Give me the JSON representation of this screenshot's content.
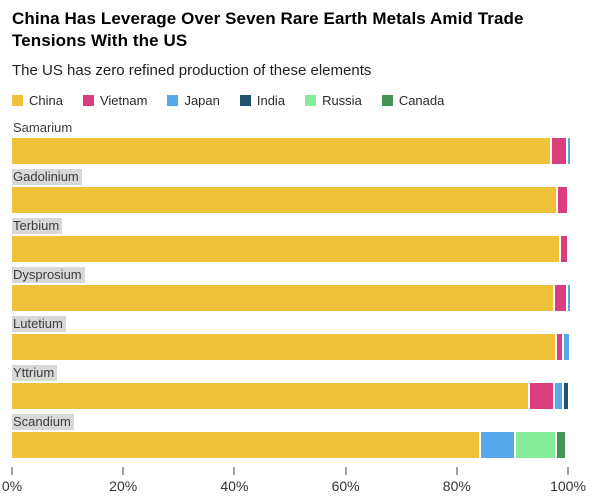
{
  "header": {
    "title": "China Has Leverage Over Seven Rare Earth Metals Amid Trade Tensions With the US",
    "subtitle": "The US has zero refined production of these elements"
  },
  "legend": [
    {
      "label": "China",
      "color": "#F0C239"
    },
    {
      "label": "Vietnam",
      "color": "#DB3E7E"
    },
    {
      "label": "Japan",
      "color": "#55A8EA"
    },
    {
      "label": "India",
      "color": "#20506E"
    },
    {
      "label": "Russia",
      "color": "#86EC9C"
    },
    {
      "label": "Canada",
      "color": "#479355"
    }
  ],
  "chart_data": {
    "type": "bar",
    "orientation": "horizontal",
    "stacked": true,
    "unit": "%",
    "title": "China Has Leverage Over Seven Rare Earth Metals Amid Trade Tensions With the US",
    "subtitle": "The US has zero refined production of these elements",
    "categories": [
      "Samarium",
      "Gadolinium",
      "Terbium",
      "Dysprosium",
      "Lutetium",
      "Yttrium",
      "Scandium"
    ],
    "label_highlighted": [
      false,
      true,
      true,
      true,
      true,
      true,
      true
    ],
    "series": [
      {
        "name": "China",
        "color": "#F0C239",
        "values": [
          96.8,
          97.9,
          98.4,
          97.3,
          97.6,
          92.8,
          84.0
        ]
      },
      {
        "name": "Vietnam",
        "color": "#DB3E7E",
        "values": [
          2.4,
          1.6,
          1.1,
          2.0,
          0.9,
          4.2,
          0
        ]
      },
      {
        "name": "Japan",
        "color": "#55A8EA",
        "values": [
          0.5,
          0,
          0,
          0.4,
          1.0,
          1.2,
          6.0
        ]
      },
      {
        "name": "India",
        "color": "#20506E",
        "values": [
          0,
          0,
          0,
          0,
          0,
          0.8,
          0
        ]
      },
      {
        "name": "Russia",
        "color": "#86EC9C",
        "values": [
          0,
          0,
          0,
          0,
          0,
          0,
          7.0
        ]
      },
      {
        "name": "Canada",
        "color": "#479355",
        "values": [
          0,
          0,
          0,
          0,
          0,
          0,
          1.3
        ]
      }
    ],
    "x_axis": {
      "ticks": [
        "0%",
        "20%",
        "40%",
        "60%",
        "80%",
        "100%"
      ],
      "range": [
        0,
        100
      ],
      "grid": false
    },
    "legend_position": "top"
  }
}
